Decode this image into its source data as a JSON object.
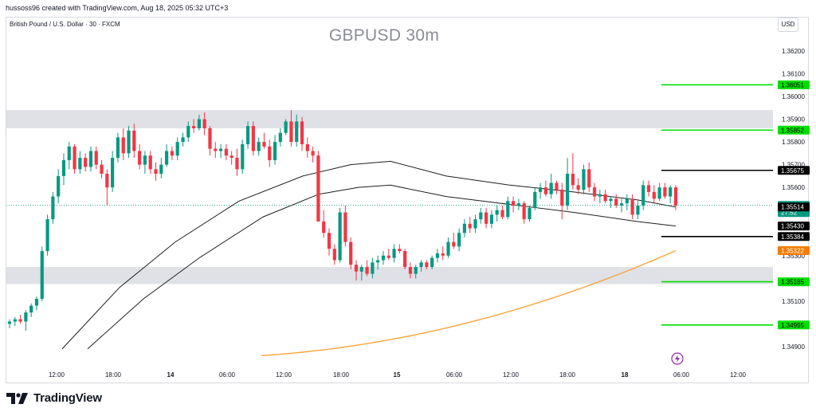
{
  "header": {
    "credit": "hussoss96 created with TradingView.com, Aug 18, 2025 05:32 UTC+3",
    "symbol": "British Pound / U.S. Dollar · 30 · FXCM",
    "currency_button": "USD"
  },
  "branding": {
    "name": "TradingView",
    "logo_icon": "tradingview-logo-icon"
  },
  "colors": {
    "up": "#089981",
    "down": "#f23645",
    "zone": "#dfe1e6",
    "green_level": "#00e000",
    "black_level": "#000000",
    "ma_orange": "#f7a53c",
    "ma_black": "#1e1e1e",
    "price_tag": "#089981",
    "orange_tag": "#f57c00",
    "lightning": "#9c27b0"
  },
  "chart_data": {
    "type": "candlestick",
    "title": "GBPUSD 30m",
    "ylim": [
      1.3484,
      1.3627
    ],
    "x_ticks": [
      "12:00",
      "18:00",
      "14",
      "06:00",
      "12:00",
      "18:00",
      "15",
      "06:00",
      "12:00",
      "18:00",
      "18",
      "06:00",
      "12:00"
    ],
    "y_ticks": [
      "1.36200",
      "1.36100",
      "1.36000",
      "1.35900",
      "1.35800",
      "1.35700",
      "1.35600",
      "1.35300",
      "1.35100",
      "1.34900"
    ],
    "candles_ohlc": [
      [
        1.35,
        1.3502,
        1.3498,
        1.3501
      ],
      [
        1.3501,
        1.3503,
        1.3499,
        1.3502
      ],
      [
        1.3502,
        1.3504,
        1.35,
        1.3501
      ],
      [
        1.3501,
        1.3506,
        1.3497,
        1.3505
      ],
      [
        1.3505,
        1.3509,
        1.3503,
        1.3508
      ],
      [
        1.3508,
        1.3512,
        1.3506,
        1.3511
      ],
      [
        1.3511,
        1.3534,
        1.351,
        1.3532
      ],
      [
        1.3532,
        1.3548,
        1.353,
        1.3546
      ],
      [
        1.3546,
        1.3558,
        1.3544,
        1.3556
      ],
      [
        1.3556,
        1.3568,
        1.3553,
        1.3565
      ],
      [
        1.3565,
        1.3575,
        1.3561,
        1.3572
      ],
      [
        1.3572,
        1.358,
        1.3568,
        1.3578
      ],
      [
        1.3578,
        1.3579,
        1.3566,
        1.3568
      ],
      [
        1.3568,
        1.3576,
        1.3566,
        1.3573
      ],
      [
        1.3573,
        1.3575,
        1.3567,
        1.3569
      ],
      [
        1.3569,
        1.3578,
        1.3567,
        1.3576
      ],
      [
        1.3576,
        1.3578,
        1.3568,
        1.357
      ],
      [
        1.357,
        1.3572,
        1.3564,
        1.3566
      ],
      [
        1.3566,
        1.3568,
        1.3552,
        1.356
      ],
      [
        1.356,
        1.3576,
        1.3558,
        1.3573
      ],
      [
        1.3573,
        1.3584,
        1.3571,
        1.3582
      ],
      [
        1.3582,
        1.3586,
        1.3572,
        1.3575
      ],
      [
        1.3575,
        1.3587,
        1.3573,
        1.3585
      ],
      [
        1.3585,
        1.3588,
        1.3573,
        1.3576
      ],
      [
        1.3576,
        1.3579,
        1.3568,
        1.357
      ],
      [
        1.357,
        1.3576,
        1.3566,
        1.3574
      ],
      [
        1.3574,
        1.3576,
        1.3566,
        1.3568
      ],
      [
        1.3568,
        1.3571,
        1.3563,
        1.3566
      ],
      [
        1.3566,
        1.3573,
        1.3564,
        1.357
      ],
      [
        1.357,
        1.3579,
        1.3569,
        1.3576
      ],
      [
        1.3576,
        1.3578,
        1.3572,
        1.3574
      ],
      [
        1.3574,
        1.3582,
        1.3572,
        1.358
      ],
      [
        1.358,
        1.3584,
        1.3578,
        1.3582
      ],
      [
        1.3582,
        1.3589,
        1.358,
        1.3587
      ],
      [
        1.3587,
        1.359,
        1.3584,
        1.3586
      ],
      [
        1.3586,
        1.3592,
        1.3585,
        1.359
      ],
      [
        1.359,
        1.3593,
        1.3583,
        1.3586
      ],
      [
        1.3586,
        1.3587,
        1.3574,
        1.3577
      ],
      [
        1.3577,
        1.358,
        1.3573,
        1.3576
      ],
      [
        1.3576,
        1.3579,
        1.3573,
        1.3577
      ],
      [
        1.3577,
        1.3579,
        1.3572,
        1.3574
      ],
      [
        1.3574,
        1.3576,
        1.357,
        1.3573
      ],
      [
        1.3573,
        1.3577,
        1.3565,
        1.3568
      ],
      [
        1.3568,
        1.3581,
        1.3566,
        1.3579
      ],
      [
        1.3579,
        1.3589,
        1.3577,
        1.3587
      ],
      [
        1.3587,
        1.3589,
        1.3574,
        1.3576
      ],
      [
        1.3576,
        1.3582,
        1.3574,
        1.358
      ],
      [
        1.358,
        1.3584,
        1.3577,
        1.3578
      ],
      [
        1.3578,
        1.3581,
        1.3569,
        1.3572
      ],
      [
        1.3572,
        1.3583,
        1.357,
        1.358
      ],
      [
        1.358,
        1.3586,
        1.3578,
        1.3584
      ],
      [
        1.3584,
        1.359,
        1.3583,
        1.3589
      ],
      [
        1.3589,
        1.3594,
        1.3578,
        1.358
      ],
      [
        1.358,
        1.3592,
        1.3578,
        1.3589
      ],
      [
        1.3589,
        1.3591,
        1.3576,
        1.3579
      ],
      [
        1.3579,
        1.3582,
        1.3573,
        1.3576
      ],
      [
        1.3576,
        1.3578,
        1.3571,
        1.3574
      ],
      [
        1.3574,
        1.3576,
        1.356,
        1.3545
      ],
      [
        1.3545,
        1.355,
        1.3538,
        1.354
      ],
      [
        1.354,
        1.3542,
        1.353,
        1.3533
      ],
      [
        1.3533,
        1.3535,
        1.3526,
        1.3528
      ],
      [
        1.3528,
        1.3551,
        1.3527,
        1.3549
      ],
      [
        1.3549,
        1.3552,
        1.3534,
        1.3536
      ],
      [
        1.3536,
        1.3538,
        1.3524,
        1.3526
      ],
      [
        1.3526,
        1.3528,
        1.3519,
        1.3523
      ],
      [
        1.3523,
        1.3526,
        1.3519,
        1.3525
      ],
      [
        1.3525,
        1.3528,
        1.3521,
        1.3522
      ],
      [
        1.3522,
        1.3529,
        1.352,
        1.3527
      ],
      [
        1.3527,
        1.353,
        1.3524,
        1.3528
      ],
      [
        1.3528,
        1.3532,
        1.3526,
        1.353
      ],
      [
        1.353,
        1.3533,
        1.3528,
        1.3529
      ],
      [
        1.3529,
        1.3535,
        1.3527,
        1.3533
      ],
      [
        1.3533,
        1.3535,
        1.3531,
        1.3532
      ],
      [
        1.3532,
        1.3533,
        1.3524,
        1.3525
      ],
      [
        1.3525,
        1.3527,
        1.352,
        1.3522
      ],
      [
        1.3522,
        1.3526,
        1.352,
        1.3525
      ],
      [
        1.3525,
        1.3528,
        1.3523,
        1.3527
      ],
      [
        1.3527,
        1.3528,
        1.3524,
        1.3525
      ],
      [
        1.3525,
        1.353,
        1.3524,
        1.3529
      ],
      [
        1.3529,
        1.3533,
        1.3527,
        1.3531
      ],
      [
        1.3531,
        1.3534,
        1.3528,
        1.353
      ],
      [
        1.353,
        1.3538,
        1.3529,
        1.3536
      ],
      [
        1.3536,
        1.354,
        1.3533,
        1.3534
      ],
      [
        1.3534,
        1.3542,
        1.3532,
        1.354
      ],
      [
        1.354,
        1.3546,
        1.3538,
        1.3544
      ],
      [
        1.3544,
        1.3547,
        1.354,
        1.3542
      ],
      [
        1.3542,
        1.3548,
        1.354,
        1.3546
      ],
      [
        1.3546,
        1.3551,
        1.3544,
        1.3549
      ],
      [
        1.3549,
        1.3551,
        1.3542,
        1.3544
      ],
      [
        1.3544,
        1.355,
        1.3542,
        1.3548
      ],
      [
        1.3548,
        1.3552,
        1.3545,
        1.355
      ],
      [
        1.355,
        1.3552,
        1.3546,
        1.3547
      ],
      [
        1.3547,
        1.3556,
        1.3546,
        1.3554
      ],
      [
        1.3554,
        1.3556,
        1.3549,
        1.3552
      ],
      [
        1.3552,
        1.3555,
        1.355,
        1.3553
      ],
      [
        1.3553,
        1.3554,
        1.3544,
        1.3546
      ],
      [
        1.3546,
        1.3552,
        1.3545,
        1.3551
      ],
      [
        1.3551,
        1.356,
        1.355,
        1.3558
      ],
      [
        1.3558,
        1.3562,
        1.3555,
        1.356
      ],
      [
        1.356,
        1.3563,
        1.3556,
        1.3557
      ],
      [
        1.3557,
        1.3566,
        1.3555,
        1.3562
      ],
      [
        1.3562,
        1.3563,
        1.3557,
        1.3559
      ],
      [
        1.3559,
        1.3562,
        1.3546,
        1.3552
      ],
      [
        1.3552,
        1.3573,
        1.355,
        1.3566
      ],
      [
        1.3566,
        1.3575,
        1.3559,
        1.3561
      ],
      [
        1.3561,
        1.3564,
        1.3557,
        1.3559
      ],
      [
        1.3559,
        1.357,
        1.3557,
        1.3568
      ],
      [
        1.3568,
        1.3571,
        1.3558,
        1.356
      ],
      [
        1.356,
        1.3562,
        1.3554,
        1.3556
      ],
      [
        1.3556,
        1.3559,
        1.3553,
        1.3557
      ],
      [
        1.3557,
        1.3559,
        1.3553,
        1.3554
      ],
      [
        1.3554,
        1.3556,
        1.3551,
        1.3555
      ],
      [
        1.3555,
        1.3557,
        1.3551,
        1.3552
      ],
      [
        1.3552,
        1.3555,
        1.3549,
        1.3553
      ],
      [
        1.3553,
        1.3557,
        1.355,
        1.3555
      ],
      [
        1.3555,
        1.3557,
        1.3546,
        1.3548
      ],
      [
        1.3548,
        1.3554,
        1.3546,
        1.3552
      ],
      [
        1.3552,
        1.3563,
        1.355,
        1.3561
      ],
      [
        1.3561,
        1.3563,
        1.3556,
        1.3558
      ],
      [
        1.3558,
        1.3561,
        1.3553,
        1.3555
      ],
      [
        1.3555,
        1.3562,
        1.3554,
        1.356
      ],
      [
        1.356,
        1.3562,
        1.3555,
        1.3556
      ],
      [
        1.3556,
        1.3561,
        1.3553,
        1.356
      ],
      [
        1.356,
        1.3561,
        1.355,
        1.3552
      ]
    ],
    "ma_black_upper": [
      [
        1.3471,
        68
      ],
      [
        1.3516,
        0.5
      ],
      [
        1.356,
        0.72
      ],
      [
        1.3581,
        0.85
      ],
      [
        1.3588,
        0.98
      ],
      [
        1.3582,
        1.0
      ],
      [
        1.357,
        1.0
      ],
      [
        1.3566,
        1.0
      ],
      [
        1.3562,
        1.0
      ],
      [
        1.3552,
        1.0
      ]
    ],
    "levels": [
      {
        "name": "level-green-1",
        "value": 1.36051,
        "label": "1.36051",
        "kind": "green"
      },
      {
        "name": "level-green-2",
        "value": 1.35852,
        "label": "1.35852",
        "kind": "green"
      },
      {
        "name": "level-black-1",
        "value": 1.35675,
        "label": "1.35675",
        "kind": "black"
      },
      {
        "name": "level-black-2",
        "value": 1.35384,
        "label": "1.35384",
        "kind": "black"
      },
      {
        "name": "level-green-3",
        "value": 1.35185,
        "label": "1.35185",
        "kind": "green"
      },
      {
        "name": "level-green-4",
        "value": 1.34995,
        "label": "1.34995",
        "kind": "green"
      }
    ],
    "price_tags": [
      {
        "name": "current-price-tag",
        "value": 1.35521,
        "label": "1.35521",
        "sublabel": "27:52",
        "kind": "price"
      },
      {
        "name": "ma-black-upper-tag",
        "value": 1.35514,
        "label": "1.35514",
        "kind": "black"
      },
      {
        "name": "ma-black-lower-tag",
        "value": 1.3543,
        "label": "1.35430",
        "kind": "black"
      },
      {
        "name": "ma-orange-tag",
        "value": 1.35322,
        "label": "1.35322",
        "kind": "orange"
      }
    ],
    "zones": [
      {
        "name": "resistance-zone",
        "from": 1.3586,
        "to": 1.3594
      },
      {
        "name": "support-zone",
        "from": 1.35175,
        "to": 1.3525
      }
    ],
    "grid": false
  }
}
